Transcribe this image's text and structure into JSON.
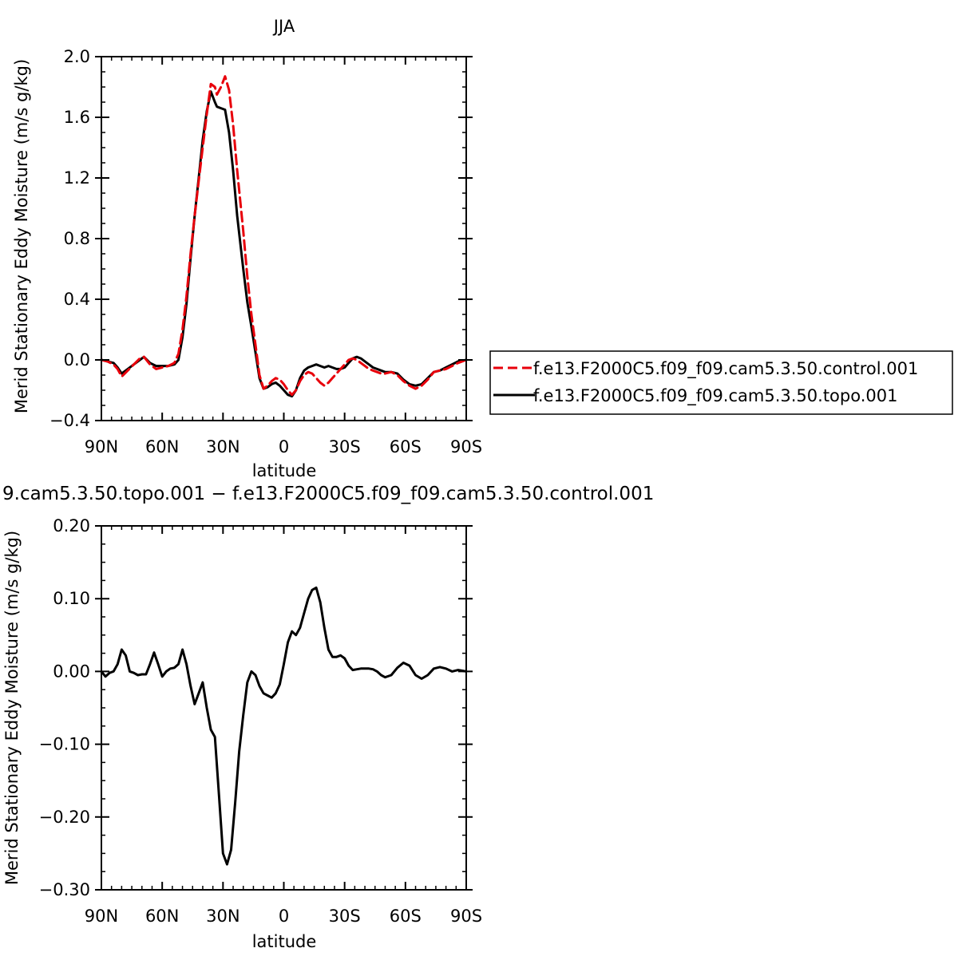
{
  "colors": {
    "control": "#e8000b",
    "topo": "#000000",
    "axis": "#000000",
    "background": "#ffffff"
  },
  "chart_data": [
    {
      "type": "line",
      "title": "JJA",
      "xlabel": "latitude",
      "ylabel": "Merid Stationary Eddy Moisture (m/s g/kg)",
      "xlim": [
        90,
        -90
      ],
      "ylim": [
        -0.4,
        2.0
      ],
      "x_ticks": [
        90,
        60,
        30,
        0,
        -30,
        -60,
        -90
      ],
      "x_tick_labels": [
        "90N",
        "60N",
        "30N",
        "0",
        "30S",
        "60S",
        "90S"
      ],
      "y_ticks": [
        -0.4,
        0.0,
        0.4,
        0.8,
        1.2,
        1.6,
        2.0
      ],
      "y_tick_labels": [
        "−0.4",
        "0.0",
        "0.4",
        "0.8",
        "1.2",
        "1.6",
        "2.0"
      ],
      "legend": {
        "placement": "right",
        "entries": [
          "f.e13.F2000C5.f09_f09.cam5.3.50.control.001",
          "f.e13.F2000C5.f09_f09.cam5.3.50.topo.001"
        ]
      },
      "series": [
        {
          "name": "f.e13.F2000C5.f09_f09.cam5.3.50.control.001",
          "style": "dashed",
          "color": "#e8000b",
          "x": [
            90,
            87,
            84,
            82,
            80,
            77,
            74,
            71,
            69,
            66,
            63,
            60,
            57,
            54,
            52,
            50,
            48,
            46,
            44,
            42,
            40,
            38,
            36,
            34,
            33,
            31,
            29,
            27,
            25,
            23,
            20,
            18,
            16,
            14,
            12,
            10,
            8,
            6,
            4,
            2,
            0,
            -2,
            -4,
            -6,
            -8,
            -10,
            -12,
            -14,
            -16,
            -18,
            -20,
            -22,
            -24,
            -26,
            -28,
            -30,
            -32,
            -34,
            -36,
            -38,
            -40,
            -42,
            -44,
            -46,
            -48,
            -50,
            -53,
            -56,
            -59,
            -62,
            -65,
            -68,
            -71,
            -74,
            -77,
            -80,
            -83,
            -86,
            -90
          ],
          "y": [
            0.0,
            -0.01,
            -0.03,
            -0.06,
            -0.11,
            -0.07,
            -0.03,
            0.01,
            0.02,
            -0.03,
            -0.06,
            -0.05,
            -0.04,
            -0.02,
            0.04,
            0.2,
            0.42,
            0.7,
            0.95,
            1.18,
            1.4,
            1.62,
            1.82,
            1.8,
            1.75,
            1.8,
            1.87,
            1.78,
            1.55,
            1.25,
            0.85,
            0.55,
            0.3,
            0.1,
            -0.1,
            -0.19,
            -0.17,
            -0.14,
            -0.12,
            -0.13,
            -0.16,
            -0.2,
            -0.23,
            -0.2,
            -0.14,
            -0.1,
            -0.08,
            -0.09,
            -0.12,
            -0.15,
            -0.17,
            -0.15,
            -0.12,
            -0.09,
            -0.06,
            -0.03,
            0.0,
            0.01,
            0.0,
            -0.02,
            -0.04,
            -0.06,
            -0.07,
            -0.08,
            -0.09,
            -0.09,
            -0.08,
            -0.1,
            -0.14,
            -0.17,
            -0.19,
            -0.17,
            -0.13,
            -0.08,
            -0.07,
            -0.06,
            -0.04,
            -0.02,
            0.0
          ]
        },
        {
          "name": "f.e13.F2000C5.f09_f09.cam5.3.50.topo.001",
          "style": "solid",
          "color": "#000000",
          "x": [
            90,
            87,
            84,
            82,
            80,
            77,
            74,
            71,
            69,
            66,
            63,
            60,
            57,
            54,
            52,
            50,
            48,
            46,
            44,
            42,
            40,
            38,
            36,
            34,
            33,
            31,
            29,
            27,
            25,
            23,
            20,
            18,
            16,
            14,
            12,
            10,
            8,
            6,
            4,
            2,
            0,
            -2,
            -4,
            -6,
            -8,
            -10,
            -12,
            -14,
            -16,
            -18,
            -20,
            -22,
            -24,
            -26,
            -28,
            -30,
            -32,
            -34,
            -36,
            -38,
            -40,
            -42,
            -44,
            -46,
            -48,
            -50,
            -53,
            -56,
            -59,
            -62,
            -65,
            -68,
            -71,
            -74,
            -77,
            -80,
            -83,
            -86,
            -90
          ],
          "y": [
            0.0,
            -0.01,
            -0.02,
            -0.05,
            -0.09,
            -0.06,
            -0.03,
            0.0,
            0.02,
            -0.02,
            -0.04,
            -0.04,
            -0.04,
            -0.03,
            0.0,
            0.15,
            0.37,
            0.67,
            0.95,
            1.2,
            1.45,
            1.64,
            1.77,
            1.7,
            1.67,
            1.66,
            1.65,
            1.5,
            1.25,
            0.95,
            0.6,
            0.38,
            0.22,
            0.05,
            -0.12,
            -0.19,
            -0.18,
            -0.16,
            -0.15,
            -0.17,
            -0.2,
            -0.23,
            -0.24,
            -0.2,
            -0.12,
            -0.07,
            -0.05,
            -0.04,
            -0.03,
            -0.04,
            -0.05,
            -0.04,
            -0.05,
            -0.06,
            -0.06,
            -0.05,
            -0.02,
            0.01,
            0.02,
            0.01,
            -0.01,
            -0.03,
            -0.05,
            -0.06,
            -0.07,
            -0.08,
            -0.08,
            -0.09,
            -0.13,
            -0.16,
            -0.17,
            -0.16,
            -0.12,
            -0.08,
            -0.07,
            -0.05,
            -0.03,
            -0.01,
            0.0
          ]
        }
      ]
    },
    {
      "type": "line",
      "title": "9.cam5.3.50.topo.001 − f.e13.F2000C5.f09_f09.cam5.3.50.control.001",
      "xlabel": "latitude",
      "ylabel": "Merid Stationary Eddy Moisture (m/s g/kg)",
      "xlim": [
        90,
        -90
      ],
      "ylim": [
        -0.3,
        0.2
      ],
      "x_ticks": [
        90,
        60,
        30,
        0,
        -30,
        -60,
        -90
      ],
      "x_tick_labels": [
        "90N",
        "60N",
        "30N",
        "0",
        "30S",
        "60S",
        "90S"
      ],
      "y_ticks": [
        -0.3,
        -0.2,
        -0.1,
        0.0,
        0.1,
        0.2
      ],
      "y_tick_labels": [
        "−0.30",
        "−0.20",
        "−0.10",
        "0.00",
        "0.10",
        "0.20"
      ],
      "series": [
        {
          "style": "solid",
          "color": "#000000",
          "x": [
            90,
            88,
            86,
            84,
            82,
            80,
            78,
            76,
            74,
            72,
            70,
            68,
            66,
            64,
            62,
            60,
            58,
            56,
            54,
            52,
            50,
            48,
            46,
            44,
            42,
            40,
            38,
            36,
            34,
            32,
            30,
            28,
            26,
            24,
            22,
            20,
            18,
            16,
            14,
            12,
            10,
            8,
            6,
            4,
            2,
            0,
            -2,
            -4,
            -6,
            -8,
            -10,
            -12,
            -14,
            -16,
            -18,
            -20,
            -22,
            -24,
            -26,
            -28,
            -30,
            -32,
            -34,
            -36,
            -38,
            -40,
            -42,
            -44,
            -46,
            -48,
            -50,
            -53,
            -56,
            -59,
            -62,
            -65,
            -68,
            -71,
            -74,
            -77,
            -80,
            -83,
            -86,
            -88,
            -90
          ],
          "y": [
            0.0,
            -0.007,
            -0.002,
            0.0,
            0.01,
            0.03,
            0.022,
            0.0,
            -0.002,
            -0.005,
            -0.004,
            -0.004,
            0.01,
            0.026,
            0.01,
            -0.007,
            0.0,
            0.004,
            0.005,
            0.01,
            0.03,
            0.01,
            -0.02,
            -0.045,
            -0.03,
            -0.015,
            -0.05,
            -0.08,
            -0.09,
            -0.17,
            -0.25,
            -0.265,
            -0.245,
            -0.18,
            -0.11,
            -0.06,
            -0.015,
            0.0,
            -0.005,
            -0.02,
            -0.03,
            -0.033,
            -0.036,
            -0.03,
            -0.018,
            0.01,
            0.04,
            0.055,
            0.05,
            0.06,
            0.08,
            0.1,
            0.112,
            0.115,
            0.095,
            0.06,
            0.03,
            0.02,
            0.02,
            0.022,
            0.018,
            0.008,
            0.002,
            0.003,
            0.004,
            0.004,
            0.004,
            0.003,
            0.0,
            -0.005,
            -0.008,
            -0.005,
            0.005,
            0.012,
            0.008,
            -0.005,
            -0.01,
            -0.005,
            0.004,
            0.006,
            0.004,
            0.0,
            0.002,
            0.001,
            0.0
          ]
        }
      ]
    }
  ]
}
